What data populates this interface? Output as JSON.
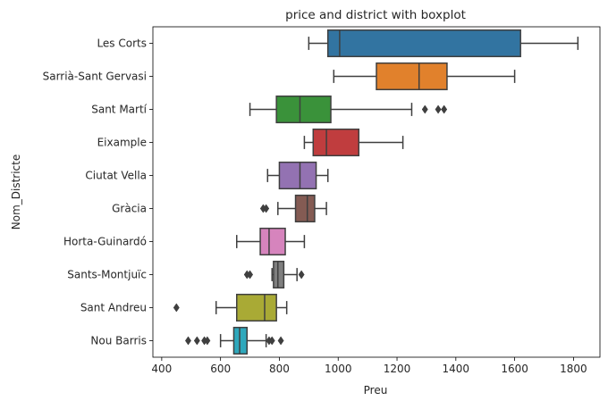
{
  "chart_data": {
    "type": "boxplot",
    "orientation": "horizontal",
    "title": "price and district with boxplot",
    "xlabel": "Preu",
    "ylabel": "Nom_Districte",
    "xlim": [
      370,
      1890
    ],
    "xticks": [
      400,
      600,
      800,
      1000,
      1200,
      1400,
      1600,
      1800
    ],
    "grid": false,
    "categories": [
      "Les Corts",
      "Sarrià-Sant Gervasi",
      "Sant Martí",
      "Eixample",
      "Ciutat Vella",
      "Gràcia",
      "Horta-Guinardó",
      "Sants-Montjuïc",
      "Sant Andreu",
      "Nou Barris"
    ],
    "boxes": [
      {
        "category": "Les Corts",
        "color": "#3274a1",
        "whisker_low": 900,
        "q1": 965,
        "median": 1005,
        "q3": 1620,
        "whisker_high": 1815,
        "outliers": []
      },
      {
        "category": "Sarrià-Sant Gervasi",
        "color": "#e1812c",
        "whisker_low": 985,
        "q1": 1130,
        "median": 1275,
        "q3": 1370,
        "whisker_high": 1600,
        "outliers": []
      },
      {
        "category": "Sant Martí",
        "color": "#3a923a",
        "whisker_low": 700,
        "q1": 790,
        "median": 870,
        "q3": 975,
        "whisker_high": 1250,
        "outliers": [
          1295,
          1340,
          1360
        ]
      },
      {
        "category": "Eixample",
        "color": "#c03d3e",
        "whisker_low": 885,
        "q1": 915,
        "median": 960,
        "q3": 1070,
        "whisker_high": 1220,
        "outliers": []
      },
      {
        "category": "Ciutat Vella",
        "color": "#9372b2",
        "whisker_low": 760,
        "q1": 800,
        "median": 870,
        "q3": 925,
        "whisker_high": 965,
        "outliers": []
      },
      {
        "category": "Gràcia",
        "color": "#845b53",
        "whisker_low": 795,
        "q1": 855,
        "median": 895,
        "q3": 920,
        "whisker_high": 960,
        "outliers": [
          745,
          755
        ]
      },
      {
        "category": "Horta-Guinardó",
        "color": "#d684bd",
        "whisker_low": 655,
        "q1": 735,
        "median": 765,
        "q3": 820,
        "whisker_high": 885,
        "outliers": []
      },
      {
        "category": "Sants-Montjuïc",
        "color": "#7f7f7f",
        "whisker_low": 775,
        "q1": 780,
        "median": 795,
        "q3": 815,
        "whisker_high": 860,
        "outliers": [
          690,
          700,
          875
        ]
      },
      {
        "category": "Sant Andreu",
        "color": "#a9aa35",
        "whisker_low": 585,
        "q1": 655,
        "median": 750,
        "q3": 790,
        "whisker_high": 825,
        "outliers": [
          450
        ]
      },
      {
        "category": "Nou Barris",
        "color": "#2ea8bc",
        "whisker_low": 600,
        "q1": 645,
        "median": 665,
        "q3": 690,
        "whisker_high": 755,
        "outliers": [
          490,
          520,
          545,
          555,
          765,
          775,
          805
        ]
      }
    ]
  }
}
